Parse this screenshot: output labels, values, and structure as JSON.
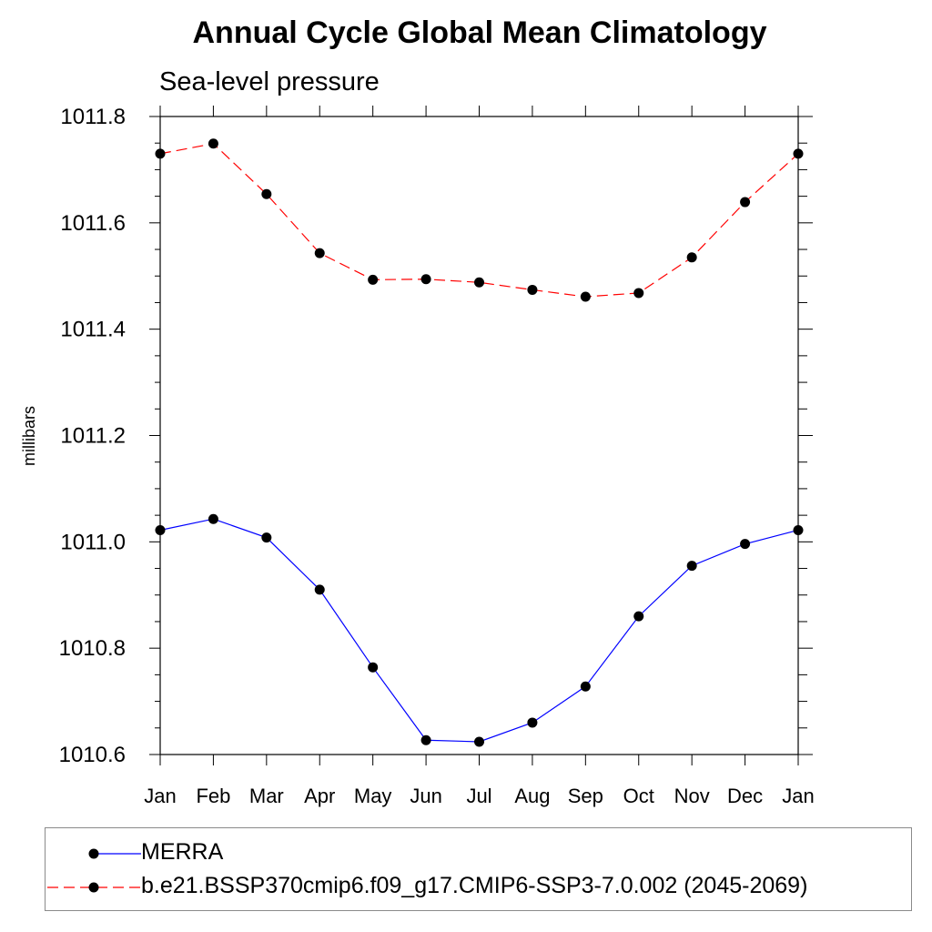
{
  "chart_data": {
    "type": "line",
    "title": "Annual Cycle Global Mean Climatology",
    "subtitle": "Sea-level pressure",
    "xlabel": "",
    "ylabel": "millibars",
    "categories": [
      "Jan",
      "Feb",
      "Mar",
      "Apr",
      "May",
      "Jun",
      "Jul",
      "Aug",
      "Sep",
      "Oct",
      "Nov",
      "Dec",
      "Jan"
    ],
    "ylim": [
      1010.6,
      1011.8
    ],
    "yticks": [
      "1010.6",
      "1010.8",
      "1011.0",
      "1011.2",
      "1011.4",
      "1011.6",
      "1011.8"
    ],
    "grid": false,
    "legend_position": "bottom",
    "series": [
      {
        "name": "MERRA",
        "color": "#0000ff",
        "line_style": "solid",
        "marker": "filled-circle",
        "values": [
          1011.022,
          1011.043,
          1011.008,
          1010.91,
          1010.764,
          1010.627,
          1010.624,
          1010.66,
          1010.728,
          1010.86,
          1010.955,
          1010.996,
          1011.022
        ]
      },
      {
        "name": "b.e21.BSSP370cmip6.f09_g17.CMIP6-SSP3-7.0.002 (2045-2069)",
        "color": "#ff0000",
        "line_style": "dashed",
        "marker": "filled-circle",
        "values": [
          1011.73,
          1011.749,
          1011.654,
          1011.543,
          1011.493,
          1011.494,
          1011.488,
          1011.474,
          1011.461,
          1011.468,
          1011.535,
          1011.639,
          1011.73
        ]
      }
    ]
  }
}
